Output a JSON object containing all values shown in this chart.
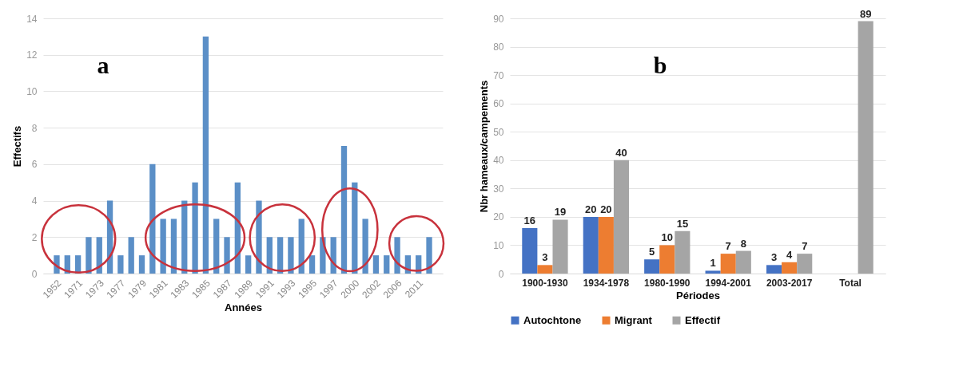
{
  "chart_data": [
    {
      "type": "bar",
      "xlabel": "Années",
      "ylabel": "Effectifs",
      "annotations": [
        "a"
      ],
      "color": "#5b8fc7",
      "categories": [
        "1952",
        null,
        "1971",
        null,
        "1973",
        null,
        "1977",
        null,
        "1979",
        null,
        "1981",
        null,
        "1983",
        null,
        "1985",
        null,
        "1987",
        null,
        "1989",
        null,
        "1991",
        null,
        "1993",
        null,
        "1995",
        null,
        "1997",
        null,
        "2000",
        null,
        "2002",
        null,
        "2006",
        null,
        "2011",
        null
      ],
      "values": [
        1,
        1,
        1,
        2,
        2,
        4,
        1,
        2,
        1,
        6,
        3,
        3,
        4,
        5,
        13,
        3,
        2,
        5,
        1,
        4,
        2,
        2,
        2,
        3,
        1,
        2,
        2,
        7,
        5,
        3,
        1,
        1,
        2,
        1,
        1,
        2
      ],
      "ylim": [
        0,
        14
      ],
      "yticks": [
        0,
        2,
        4,
        6,
        8,
        10,
        12,
        14
      ],
      "grid": "y"
    },
    {
      "type": "bar",
      "xlabel": "Périodes",
      "ylabel": "Nbr hameaux/campements",
      "annotations": [
        "b"
      ],
      "categories": [
        "1900-1930",
        "1934-1978",
        "1980-1990",
        "1994-2001",
        "2003-2017",
        "Total"
      ],
      "series": [
        {
          "name": "Autochtone",
          "color": "#4472c4",
          "values": [
            16,
            20,
            5,
            1,
            3,
            null
          ]
        },
        {
          "name": "Migrant",
          "color": "#ed7d31",
          "values": [
            3,
            20,
            10,
            7,
            4,
            null
          ]
        },
        {
          "name": "Effectif",
          "color": "#a5a5a5",
          "values": [
            19,
            40,
            15,
            8,
            7,
            89
          ]
        }
      ],
      "ylim": [
        0,
        90
      ],
      "yticks": [
        0,
        10,
        20,
        30,
        40,
        50,
        60,
        70,
        80,
        90
      ],
      "grid": "y",
      "legend": "bottom",
      "data_labels": true
    }
  ]
}
